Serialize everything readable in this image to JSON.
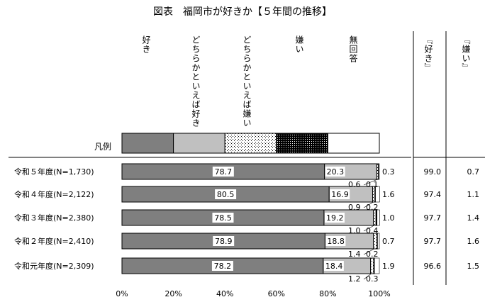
{
  "title": "図表　福岡市が好きか【５年間の推移】",
  "headers": {
    "cat1": "好き",
    "cat2": "どちらかといえば好き",
    "cat3": "どちらかといえば嫌い",
    "cat4": "嫌い",
    "cat5": "無回答",
    "sum_like": "『好き』",
    "sum_dislike": "『嫌い』"
  },
  "legend_label": "凡例",
  "colors": {
    "like": "#7f7f7f",
    "somewhat_like": "#c0c0c0",
    "somewhat_dislike": "dotted-light",
    "dislike": "dotted-dense",
    "no_answer": "#ffffff"
  },
  "chart_data": {
    "type": "bar",
    "orientation": "horizontal",
    "stacked": true,
    "title": "図表　福岡市が好きか【５年間の推移】",
    "xlim": [
      0,
      100
    ],
    "x_ticks": [
      "0%",
      "20%",
      "40%",
      "60%",
      "80%",
      "100%"
    ],
    "categories": [
      "令和５年度(N=1,730)",
      "令和４年度(N=2,122)",
      "令和３年度(N=2,380)",
      "令和２年度(N=2,410)",
      "令和元年度(N=2,309)"
    ],
    "series": [
      {
        "name": "好き",
        "values": [
          78.7,
          80.5,
          78.5,
          78.9,
          78.2
        ]
      },
      {
        "name": "どちらかといえば好き",
        "values": [
          20.3,
          16.9,
          19.2,
          18.8,
          18.4
        ]
      },
      {
        "name": "どちらかといえば嫌い",
        "values": [
          0.6,
          0.9,
          1.0,
          1.4,
          1.2
        ]
      },
      {
        "name": "嫌い",
        "values": [
          0.1,
          0.2,
          0.4,
          0.2,
          0.3
        ]
      },
      {
        "name": "無回答",
        "values": [
          0.3,
          1.6,
          1.0,
          0.7,
          1.9
        ]
      }
    ],
    "summary": {
      "好き_total": [
        "99.0",
        "97.4",
        "97.7",
        "97.7",
        "96.6"
      ],
      "嫌い_total": [
        "0.7",
        "1.1",
        "1.4",
        "1.6",
        "1.5"
      ]
    },
    "labels": {
      "like": [
        "78.7",
        "80.5",
        "78.5",
        "78.9",
        "78.2"
      ],
      "somewhat_like": [
        "20.3",
        "16.9",
        "19.2",
        "18.8",
        "18.4"
      ],
      "somewhat_dislike": [
        "0.6",
        "0.9",
        "1.0",
        "1.4",
        "1.2"
      ],
      "dislike": [
        "0.1",
        "0.2",
        "0.4",
        "0.2",
        "0.3"
      ],
      "no_answer": [
        "0.3",
        "1.6",
        "1.0",
        "0.7",
        "1.9"
      ]
    }
  }
}
